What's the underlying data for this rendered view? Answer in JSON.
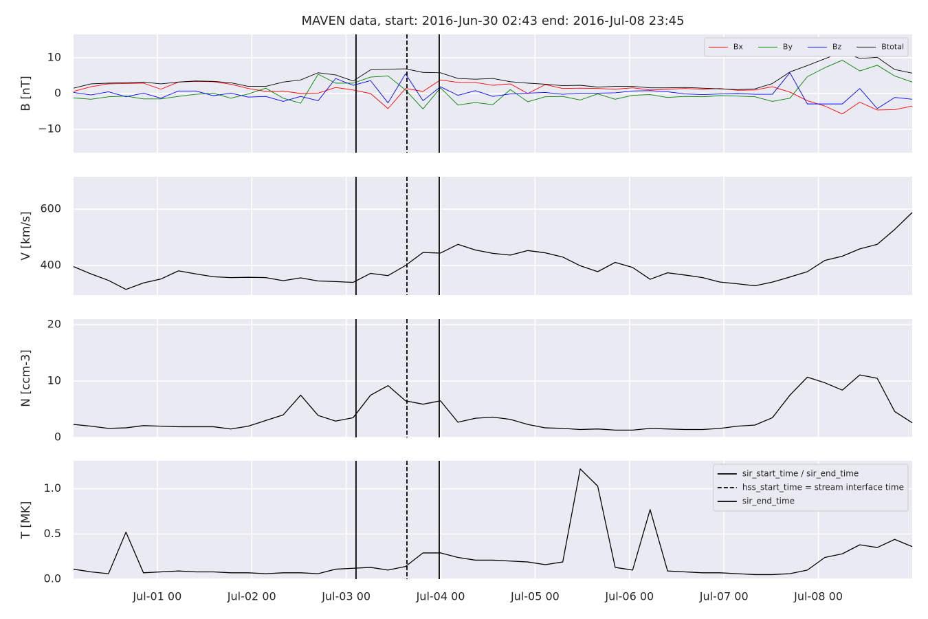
{
  "chart_data": [
    {
      "type": "line",
      "title": "MAVEN data, start: 2016-Jun-30 02:43  end: 2016-Jul-08 23:45",
      "ylabel": "B [nT]",
      "x": [
        0.113,
        0.298,
        0.483,
        0.668,
        0.853,
        1.038,
        1.223,
        1.408,
        1.593,
        1.778,
        1.963,
        2.148,
        2.333,
        2.518,
        2.703,
        2.888,
        3.073,
        3.258,
        3.443,
        3.628,
        3.813,
        3.998,
        4.183,
        4.368,
        4.553,
        4.738,
        4.923,
        5.108,
        5.293,
        5.478,
        5.663,
        5.848,
        6.033,
        6.218,
        6.403,
        6.588,
        6.773,
        6.958,
        7.143,
        7.328,
        7.513,
        7.698,
        7.883,
        8.068,
        8.253,
        8.438,
        8.623,
        8.808,
        8.993
      ],
      "series": [
        {
          "name": "Bx",
          "color": "#ff0000",
          "values": [
            0.6,
            1.9,
            2.7,
            2.8,
            2.9,
            1.2,
            3.2,
            3.4,
            3.3,
            2.6,
            1.4,
            0.6,
            0.7,
            0.0,
            0.1,
            1.7,
            1.0,
            0.0,
            -4.2,
            1.4,
            0.6,
            3.8,
            3.1,
            3.1,
            2.3,
            2.7,
            0.0,
            2.5,
            1.4,
            1.5,
            1.4,
            1.2,
            1.6,
            1.0,
            1.2,
            1.4,
            1.2,
            1.4,
            0.9,
            1.0,
            1.9,
            0.4,
            -2.0,
            -3.5,
            -5.7,
            -2.4,
            -4.6,
            -4.5,
            -3.5
          ]
        },
        {
          "name": "By",
          "color": "#008000",
          "values": [
            -1.2,
            -1.6,
            -0.9,
            -0.7,
            -1.5,
            -1.5,
            -0.8,
            -0.2,
            0.1,
            -1.3,
            -0.1,
            1.5,
            -1.3,
            -2.7,
            5.4,
            2.9,
            2.9,
            4.6,
            4.9,
            1.0,
            -4.3,
            1.6,
            -3.2,
            -2.5,
            -3.1,
            1.1,
            -2.3,
            -0.9,
            -0.8,
            -1.8,
            -0.1,
            -1.6,
            -0.5,
            -0.3,
            -1.1,
            -0.8,
            -0.9,
            -0.6,
            -0.7,
            -0.9,
            -2.2,
            -1.3,
            4.7,
            7.2,
            9.3,
            6.3,
            7.9,
            4.9,
            3.2
          ]
        },
        {
          "name": "Bz",
          "color": "#0000ff",
          "values": [
            0.3,
            -0.4,
            0.5,
            -0.9,
            0.1,
            -1.3,
            0.7,
            0.7,
            -0.6,
            0.1,
            -1.0,
            -0.8,
            -2.2,
            -0.8,
            -2.0,
            4.2,
            2.3,
            3.6,
            -2.6,
            5.5,
            -2.0,
            1.9,
            -0.5,
            0.8,
            -0.8,
            -0.1,
            0.1,
            0.3,
            -0.2,
            0.1,
            0.1,
            0.2,
            0.7,
            0.8,
            0.5,
            -0.1,
            -0.3,
            -0.1,
            0.0,
            -0.2,
            -0.2,
            5.8,
            -2.9,
            -2.9,
            -2.9,
            1.4,
            -4.2,
            -1.1,
            -1.6
          ]
        },
        {
          "name": "Btotal",
          "color": "#000000",
          "values": [
            1.5,
            2.7,
            2.9,
            3.0,
            3.2,
            2.7,
            3.2,
            3.5,
            3.4,
            3.0,
            2.0,
            2.0,
            3.2,
            3.8,
            5.8,
            5.2,
            3.5,
            6.6,
            6.8,
            6.9,
            5.9,
            5.8,
            4.2,
            4.0,
            4.2,
            3.3,
            2.9,
            2.6,
            2.2,
            2.3,
            1.8,
            2.0,
            2.0,
            1.6,
            1.6,
            1.7,
            1.5,
            1.3,
            1.1,
            1.3,
            2.8,
            6.0,
            7.8,
            9.7,
            11.6,
            9.8,
            10.1,
            6.7,
            5.7
          ]
        }
      ],
      "xlim": [
        0.113,
        8.993
      ],
      "xticks": [
        1,
        2,
        3,
        4,
        5,
        6,
        7,
        8
      ],
      "ylim": [
        -16.5,
        16.5
      ],
      "yticks": [
        {
          "value": -10,
          "label": "−10"
        },
        0,
        10
      ],
      "grid": true,
      "legend": "upper right",
      "legend_ncol": 4,
      "vlines": [
        {
          "x": 3.104,
          "style": "solid",
          "color": "#000000"
        },
        {
          "x": 3.643,
          "style": "dashed",
          "color": "#000000"
        },
        {
          "x": 3.985,
          "style": "solid",
          "color": "#000000"
        }
      ]
    },
    {
      "type": "line",
      "ylabel": "V [km/s]",
      "x": [
        0.113,
        0.298,
        0.483,
        0.668,
        0.853,
        1.038,
        1.223,
        1.408,
        1.593,
        1.778,
        1.963,
        2.148,
        2.333,
        2.518,
        2.703,
        2.888,
        3.073,
        3.258,
        3.443,
        3.628,
        3.813,
        3.998,
        4.183,
        4.368,
        4.553,
        4.738,
        4.923,
        5.108,
        5.293,
        5.478,
        5.663,
        5.848,
        6.033,
        6.218,
        6.403,
        6.588,
        6.773,
        6.958,
        7.143,
        7.328,
        7.513,
        7.698,
        7.883,
        8.068,
        8.253,
        8.438,
        8.623,
        8.808,
        8.993
      ],
      "color": "#000000",
      "values": [
        396,
        370,
        347,
        315,
        338,
        352,
        381,
        370,
        360,
        357,
        358,
        357,
        346,
        356,
        345,
        343,
        340,
        372,
        364,
        400,
        446,
        444,
        475,
        455,
        443,
        437,
        453,
        445,
        430,
        399,
        378,
        411,
        393,
        351,
        374,
        366,
        357,
        341,
        335,
        328,
        341,
        359,
        378,
        418,
        433,
        459,
        475,
        528,
        588
      ],
      "xlim": [
        0.113,
        8.993
      ],
      "xticks": [
        1,
        2,
        3,
        4,
        5,
        6,
        7,
        8
      ],
      "ylim": [
        295,
        715
      ],
      "yticks": [
        400,
        600
      ],
      "grid": true,
      "vlines": [
        {
          "x": 3.104,
          "style": "solid",
          "color": "#000000"
        },
        {
          "x": 3.643,
          "style": "dashed",
          "color": "#000000"
        },
        {
          "x": 3.985,
          "style": "solid",
          "color": "#000000"
        }
      ]
    },
    {
      "type": "line",
      "ylabel": "N [ccm-3]",
      "x": [
        0.113,
        0.298,
        0.483,
        0.668,
        0.853,
        1.038,
        1.223,
        1.408,
        1.593,
        1.778,
        1.963,
        2.148,
        2.333,
        2.518,
        2.703,
        2.888,
        3.073,
        3.258,
        3.443,
        3.628,
        3.813,
        3.998,
        4.183,
        4.368,
        4.553,
        4.738,
        4.923,
        5.108,
        5.293,
        5.478,
        5.663,
        5.848,
        6.033,
        6.218,
        6.403,
        6.588,
        6.773,
        6.958,
        7.143,
        7.328,
        7.513,
        7.698,
        7.883,
        8.068,
        8.253,
        8.438,
        8.623,
        8.808,
        8.993
      ],
      "color": "#000000",
      "values": [
        2.3,
        2.0,
        1.6,
        1.7,
        2.1,
        2.0,
        1.9,
        1.9,
        1.9,
        1.5,
        2.0,
        3.0,
        4.0,
        7.5,
        3.9,
        2.9,
        3.5,
        7.5,
        9.2,
        6.5,
        5.9,
        6.5,
        2.7,
        3.4,
        3.6,
        3.2,
        2.3,
        1.7,
        1.6,
        1.4,
        1.5,
        1.3,
        1.3,
        1.6,
        1.5,
        1.4,
        1.4,
        1.6,
        2.0,
        2.2,
        3.5,
        7.5,
        10.7,
        9.7,
        8.4,
        11.1,
        10.5,
        4.6,
        2.6
      ],
      "xlim": [
        0.113,
        8.993
      ],
      "xticks": [
        1,
        2,
        3,
        4,
        5,
        6,
        7,
        8
      ],
      "ylim": [
        0,
        21
      ],
      "yticks": [
        0,
        10,
        20
      ],
      "grid": true,
      "vlines": [
        {
          "x": 3.104,
          "style": "solid",
          "color": "#000000"
        },
        {
          "x": 3.643,
          "style": "dashed",
          "color": "#000000"
        },
        {
          "x": 3.985,
          "style": "solid",
          "color": "#000000"
        }
      ]
    },
    {
      "type": "line",
      "ylabel": "T [MK]",
      "x": [
        0.113,
        0.298,
        0.483,
        0.668,
        0.853,
        1.038,
        1.223,
        1.408,
        1.593,
        1.778,
        1.963,
        2.148,
        2.333,
        2.518,
        2.703,
        2.888,
        3.073,
        3.258,
        3.443,
        3.628,
        3.813,
        3.998,
        4.183,
        4.368,
        4.553,
        4.738,
        4.923,
        5.108,
        5.293,
        5.478,
        5.663,
        5.848,
        6.033,
        6.218,
        6.403,
        6.588,
        6.773,
        6.958,
        7.143,
        7.328,
        7.513,
        7.698,
        7.883,
        8.068,
        8.253,
        8.438,
        8.623,
        8.808,
        8.993
      ],
      "color": "#000000",
      "values": [
        0.11,
        0.08,
        0.06,
        0.52,
        0.07,
        0.08,
        0.09,
        0.08,
        0.08,
        0.07,
        0.07,
        0.06,
        0.07,
        0.07,
        0.06,
        0.11,
        0.12,
        0.13,
        0.1,
        0.14,
        0.29,
        0.29,
        0.24,
        0.21,
        0.21,
        0.2,
        0.19,
        0.16,
        0.19,
        1.22,
        1.03,
        0.13,
        0.1,
        0.77,
        0.09,
        0.08,
        0.07,
        0.07,
        0.06,
        0.05,
        0.05,
        0.06,
        0.1,
        0.24,
        0.28,
        0.38,
        0.35,
        0.44,
        0.36
      ],
      "xlim": [
        0.113,
        8.993
      ],
      "xticks": [
        {
          "value": 1,
          "label": "Jul-01 00"
        },
        {
          "value": 2,
          "label": "Jul-02 00"
        },
        {
          "value": 3,
          "label": "Jul-03 00"
        },
        {
          "value": 4,
          "label": "Jul-04 00"
        },
        {
          "value": 5,
          "label": "Jul-05 00"
        },
        {
          "value": 6,
          "label": "Jul-06 00"
        },
        {
          "value": 7,
          "label": "Jul-07 00"
        },
        {
          "value": 8,
          "label": "Jul-08 00"
        }
      ],
      "ylim": [
        0,
        1.31
      ],
      "yticks": [
        {
          "value": 0,
          "label": "0.0"
        },
        0.5,
        {
          "value": 1,
          "label": "1.0"
        }
      ],
      "grid": true,
      "legend": "upper right",
      "vlines": [
        {
          "name": "sir_start_time / sir_end_time",
          "x": 3.104,
          "style": "solid",
          "color": "#000000"
        },
        {
          "name": "hss_start_time = stream interface time",
          "x": 3.643,
          "style": "dashed",
          "color": "#000000"
        },
        {
          "name": "sir_end_time",
          "x": 3.985,
          "style": "solid",
          "color": "#000000"
        }
      ]
    }
  ]
}
